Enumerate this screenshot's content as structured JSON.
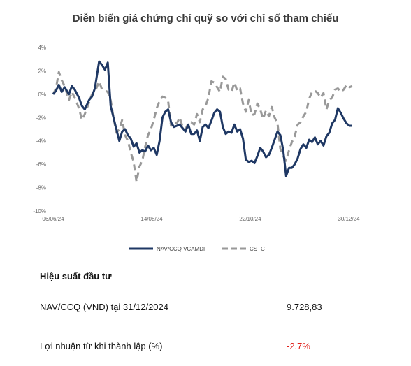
{
  "chart_data": {
    "type": "line",
    "title": "Diễn biến giá chứng chỉ quỹ so với chỉ số tham chiếu",
    "xlabel": "",
    "ylabel": "",
    "x_ticks": [
      "06/06/24",
      "14/08/24",
      "22/10/24",
      "30/12/24"
    ],
    "y_ticks": [
      "4%",
      "2%",
      "0%",
      "-2%",
      "-4%",
      "-6%",
      "-8%",
      "-10%"
    ],
    "ylim": [
      -10,
      4
    ],
    "xlim": [
      "2024-06-06",
      "2024-12-31"
    ],
    "grid": false,
    "legend_position": "bottom",
    "series": [
      {
        "name": "NAV/CCQ VCAMDF",
        "color": "#1f3864",
        "style": "solid",
        "points": [
          [
            "2024-06-06",
            0.0
          ],
          [
            "2024-06-08",
            0.3
          ],
          [
            "2024-06-10",
            0.8
          ],
          [
            "2024-06-12",
            0.2
          ],
          [
            "2024-06-14",
            0.6
          ],
          [
            "2024-06-17",
            0.0
          ],
          [
            "2024-06-19",
            0.7
          ],
          [
            "2024-06-21",
            0.4
          ],
          [
            "2024-06-24",
            -0.3
          ],
          [
            "2024-06-26",
            -1.0
          ],
          [
            "2024-06-28",
            -1.3
          ],
          [
            "2024-07-01",
            -0.5
          ],
          [
            "2024-07-03",
            -0.2
          ],
          [
            "2024-07-05",
            0.5
          ],
          [
            "2024-07-08",
            2.8
          ],
          [
            "2024-07-10",
            2.5
          ],
          [
            "2024-07-12",
            2.1
          ],
          [
            "2024-07-14",
            2.7
          ],
          [
            "2024-07-16",
            -1.0
          ],
          [
            "2024-07-18",
            -2.0
          ],
          [
            "2024-07-20",
            -3.0
          ],
          [
            "2024-07-22",
            -4.0
          ],
          [
            "2024-07-24",
            -3.2
          ],
          [
            "2024-07-26",
            -3.0
          ],
          [
            "2024-07-28",
            -3.5
          ],
          [
            "2024-07-30",
            -3.8
          ],
          [
            "2024-08-01",
            -4.5
          ],
          [
            "2024-08-03",
            -4.2
          ],
          [
            "2024-08-05",
            -5.0
          ],
          [
            "2024-08-07",
            -4.8
          ],
          [
            "2024-08-09",
            -4.9
          ],
          [
            "2024-08-11",
            -4.4
          ],
          [
            "2024-08-13",
            -4.8
          ],
          [
            "2024-08-15",
            -4.6
          ],
          [
            "2024-08-17",
            -5.2
          ],
          [
            "2024-08-19",
            -4.0
          ],
          [
            "2024-08-21",
            -2.0
          ],
          [
            "2024-08-23",
            -1.5
          ],
          [
            "2024-08-25",
            -1.3
          ],
          [
            "2024-08-27",
            -2.4
          ],
          [
            "2024-08-29",
            -2.8
          ],
          [
            "2024-08-31",
            -2.7
          ],
          [
            "2024-09-02",
            -2.6
          ],
          [
            "2024-09-04",
            -2.9
          ],
          [
            "2024-09-06",
            -3.2
          ],
          [
            "2024-09-08",
            -2.6
          ],
          [
            "2024-09-10",
            -3.4
          ],
          [
            "2024-09-12",
            -3.4
          ],
          [
            "2024-09-14",
            -3.1
          ],
          [
            "2024-09-16",
            -4.0
          ],
          [
            "2024-09-18",
            -2.8
          ],
          [
            "2024-09-20",
            -2.6
          ],
          [
            "2024-09-22",
            -2.9
          ],
          [
            "2024-09-24",
            -2.3
          ],
          [
            "2024-09-26",
            -1.6
          ],
          [
            "2024-09-28",
            -1.3
          ],
          [
            "2024-09-30",
            -1.5
          ],
          [
            "2024-10-02",
            -2.8
          ],
          [
            "2024-10-04",
            -3.4
          ],
          [
            "2024-10-06",
            -3.2
          ],
          [
            "2024-10-08",
            -3.3
          ],
          [
            "2024-10-10",
            -2.6
          ],
          [
            "2024-10-12",
            -3.2
          ],
          [
            "2024-10-14",
            -3.0
          ],
          [
            "2024-10-16",
            -3.8
          ],
          [
            "2024-10-18",
            -5.6
          ],
          [
            "2024-10-20",
            -5.8
          ],
          [
            "2024-10-22",
            -5.7
          ],
          [
            "2024-10-24",
            -5.9
          ],
          [
            "2024-10-26",
            -5.3
          ],
          [
            "2024-10-28",
            -4.6
          ],
          [
            "2024-10-30",
            -4.9
          ],
          [
            "2024-11-01",
            -5.4
          ],
          [
            "2024-11-03",
            -5.2
          ],
          [
            "2024-11-05",
            -4.6
          ],
          [
            "2024-11-07",
            -3.9
          ],
          [
            "2024-11-09",
            -3.2
          ],
          [
            "2024-11-11",
            -3.5
          ],
          [
            "2024-11-13",
            -4.8
          ],
          [
            "2024-11-15",
            -7.0
          ],
          [
            "2024-11-17",
            -6.3
          ],
          [
            "2024-11-19",
            -6.3
          ],
          [
            "2024-11-21",
            -6.0
          ],
          [
            "2024-11-23",
            -5.5
          ],
          [
            "2024-11-25",
            -4.7
          ],
          [
            "2024-11-27",
            -4.3
          ],
          [
            "2024-11-29",
            -4.6
          ],
          [
            "2024-12-01",
            -3.9
          ],
          [
            "2024-12-03",
            -4.1
          ],
          [
            "2024-12-05",
            -3.7
          ],
          [
            "2024-12-07",
            -4.3
          ],
          [
            "2024-12-09",
            -4.0
          ],
          [
            "2024-12-11",
            -4.4
          ],
          [
            "2024-12-13",
            -3.6
          ],
          [
            "2024-12-15",
            -3.3
          ],
          [
            "2024-12-17",
            -2.5
          ],
          [
            "2024-12-19",
            -2.2
          ],
          [
            "2024-12-21",
            -1.2
          ],
          [
            "2024-12-23",
            -1.6
          ],
          [
            "2024-12-25",
            -2.1
          ],
          [
            "2024-12-27",
            -2.5
          ],
          [
            "2024-12-29",
            -2.7
          ],
          [
            "2024-12-31",
            -2.7
          ]
        ]
      },
      {
        "name": "CSTC",
        "color": "#999999",
        "style": "dashed",
        "points": [
          [
            "2024-06-06",
            0.0
          ],
          [
            "2024-06-08",
            0.5
          ],
          [
            "2024-06-10",
            1.9
          ],
          [
            "2024-06-12",
            1.2
          ],
          [
            "2024-06-14",
            0.7
          ],
          [
            "2024-06-17",
            -0.5
          ],
          [
            "2024-06-19",
            0.2
          ],
          [
            "2024-06-21",
            -0.3
          ],
          [
            "2024-06-24",
            -1.2
          ],
          [
            "2024-06-26",
            -2.2
          ],
          [
            "2024-06-28",
            -1.7
          ],
          [
            "2024-07-01",
            -0.7
          ],
          [
            "2024-07-03",
            0.0
          ],
          [
            "2024-07-05",
            0.2
          ],
          [
            "2024-07-08",
            1.1
          ],
          [
            "2024-07-10",
            0.4
          ],
          [
            "2024-07-12",
            0.3
          ],
          [
            "2024-07-14",
            0.2
          ],
          [
            "2024-07-16",
            -0.5
          ],
          [
            "2024-07-18",
            -2.0
          ],
          [
            "2024-07-20",
            -3.3
          ],
          [
            "2024-07-22",
            -3.0
          ],
          [
            "2024-07-24",
            -2.2
          ],
          [
            "2024-07-26",
            -3.5
          ],
          [
            "2024-07-28",
            -4.0
          ],
          [
            "2024-07-30",
            -5.0
          ],
          [
            "2024-08-01",
            -5.8
          ],
          [
            "2024-08-03",
            -7.5
          ],
          [
            "2024-08-05",
            -6.2
          ],
          [
            "2024-08-07",
            -5.7
          ],
          [
            "2024-08-09",
            -4.5
          ],
          [
            "2024-08-11",
            -3.5
          ],
          [
            "2024-08-13",
            -3.0
          ],
          [
            "2024-08-15",
            -2.2
          ],
          [
            "2024-08-17",
            -1.2
          ],
          [
            "2024-08-19",
            -0.6
          ],
          [
            "2024-08-21",
            -0.2
          ],
          [
            "2024-08-23",
            -0.3
          ],
          [
            "2024-08-25",
            -0.6
          ],
          [
            "2024-08-27",
            -2.7
          ],
          [
            "2024-08-29",
            -2.3
          ],
          [
            "2024-08-31",
            -2.5
          ],
          [
            "2024-09-02",
            -2.0
          ],
          [
            "2024-09-04",
            -2.8
          ],
          [
            "2024-09-06",
            -3.0
          ],
          [
            "2024-09-08",
            -2.5
          ],
          [
            "2024-09-10",
            -2.4
          ],
          [
            "2024-09-12",
            -2.6
          ],
          [
            "2024-09-14",
            -1.7
          ],
          [
            "2024-09-16",
            -2.4
          ],
          [
            "2024-09-18",
            -1.3
          ],
          [
            "2024-09-20",
            -1.0
          ],
          [
            "2024-09-22",
            -0.3
          ],
          [
            "2024-09-24",
            1.1
          ],
          [
            "2024-09-26",
            1.0
          ],
          [
            "2024-09-28",
            0.6
          ],
          [
            "2024-09-30",
            0.2
          ],
          [
            "2024-10-02",
            1.5
          ],
          [
            "2024-10-04",
            1.3
          ],
          [
            "2024-10-06",
            0.4
          ],
          [
            "2024-10-08",
            0.2
          ],
          [
            "2024-10-10",
            1.0
          ],
          [
            "2024-10-12",
            0.3
          ],
          [
            "2024-10-14",
            0.5
          ],
          [
            "2024-10-16",
            -0.8
          ],
          [
            "2024-10-18",
            -1.5
          ],
          [
            "2024-10-20",
            -0.5
          ],
          [
            "2024-10-22",
            -1.8
          ],
          [
            "2024-10-24",
            -1.7
          ],
          [
            "2024-10-26",
            -0.8
          ],
          [
            "2024-10-28",
            -1.3
          ],
          [
            "2024-10-30",
            -2.1
          ],
          [
            "2024-11-01",
            -1.4
          ],
          [
            "2024-11-03",
            -1.9
          ],
          [
            "2024-11-05",
            -1.1
          ],
          [
            "2024-11-07",
            -2.0
          ],
          [
            "2024-11-09",
            -2.5
          ],
          [
            "2024-11-11",
            -4.7
          ],
          [
            "2024-11-13",
            -5.3
          ],
          [
            "2024-11-15",
            -5.7
          ],
          [
            "2024-11-17",
            -4.8
          ],
          [
            "2024-11-19",
            -4.1
          ],
          [
            "2024-11-21",
            -3.6
          ],
          [
            "2024-11-23",
            -2.6
          ],
          [
            "2024-11-25",
            -2.4
          ],
          [
            "2024-11-27",
            -1.9
          ],
          [
            "2024-11-29",
            -1.5
          ],
          [
            "2024-12-01",
            -0.4
          ],
          [
            "2024-12-03",
            0.2
          ],
          [
            "2024-12-05",
            0.3
          ],
          [
            "2024-12-07",
            0.1
          ],
          [
            "2024-12-09",
            -0.3
          ],
          [
            "2024-12-11",
            0.1
          ],
          [
            "2024-12-13",
            -1.3
          ],
          [
            "2024-12-15",
            -0.5
          ],
          [
            "2024-12-17",
            -0.3
          ],
          [
            "2024-12-19",
            0.4
          ],
          [
            "2024-12-21",
            0.5
          ],
          [
            "2024-12-23",
            0.2
          ],
          [
            "2024-12-25",
            0.4
          ],
          [
            "2024-12-27",
            0.8
          ],
          [
            "2024-12-29",
            0.6
          ],
          [
            "2024-12-31",
            0.7
          ]
        ]
      }
    ]
  },
  "performance": {
    "heading": "Hiệu suất đầu tư",
    "rows": [
      {
        "label": "NAV/CCQ (VND) tại 31/12/2024",
        "value": "9.728,83"
      },
      {
        "label": "Lợi nhuận từ khi thành lập (%)",
        "value": "-2.7%"
      }
    ],
    "negative_color": "#e0201b"
  }
}
